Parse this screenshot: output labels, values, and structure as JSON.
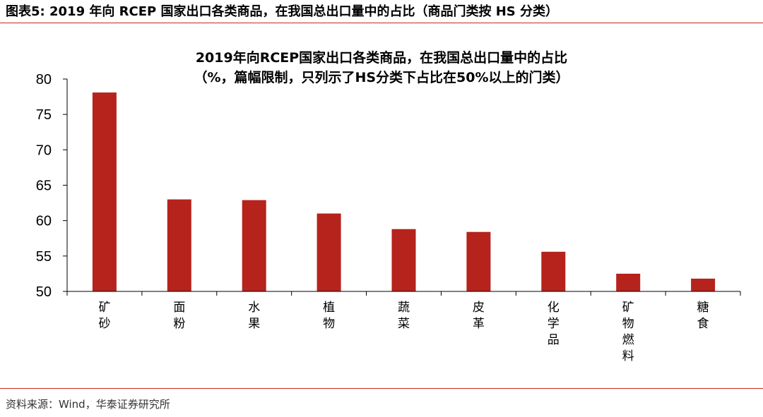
{
  "figure": {
    "label": "图表5:",
    "caption": "2019 年向 RCEP 国家出口各类商品，在我国总出口量中的占比（商品门类按 HS 分类）",
    "source": "资料来源：Wind，华泰证券研究所"
  },
  "colors": {
    "bar": "#b5231c",
    "rule": "#c8281e",
    "axis": "#000000"
  },
  "chart_data": {
    "type": "bar",
    "title": "2019年向RCEP国家出口各类商品，在我国总出口量中的占比",
    "subtitle": "（%，篇幅限制，只列示了HS分类下占比在50%以上的门类）",
    "categories": [
      "矿砂",
      "面粉",
      "水果",
      "植物",
      "蔬菜",
      "皮革",
      "化学品",
      "矿物燃料",
      "糖食"
    ],
    "values": [
      78.1,
      63.0,
      62.9,
      61.0,
      58.8,
      58.4,
      55.6,
      52.5,
      51.8
    ],
    "ylim": [
      50,
      80
    ],
    "yticks": [
      "50",
      "55",
      "60",
      "65",
      "70",
      "75",
      "80"
    ],
    "xlabel": "",
    "ylabel": "",
    "grid": false,
    "legend": "none"
  }
}
